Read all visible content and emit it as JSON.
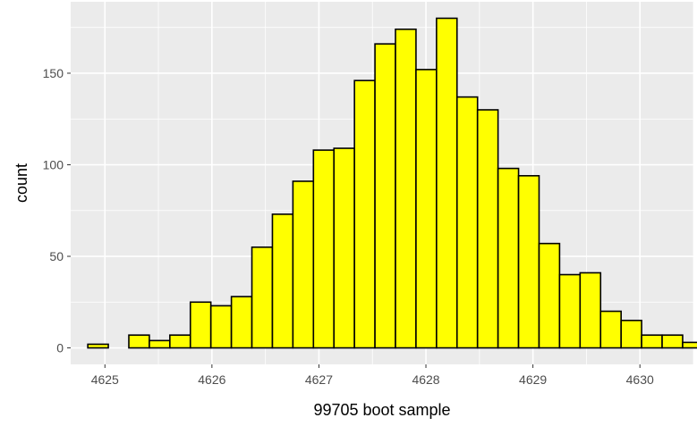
{
  "chart_data": {
    "type": "bar",
    "subtype": "histogram",
    "xlabel": "99705 boot sample",
    "ylabel": "count",
    "xlim": [
      4624.68,
      4630.5
    ],
    "ylim": [
      -9,
      189
    ],
    "x_ticks": [
      4625,
      4626,
      4627,
      4628,
      4629,
      4630
    ],
    "y_ticks": [
      0,
      50,
      100,
      150
    ],
    "bin_start": 4624.84,
    "bin_width": 0.1917,
    "values": [
      2,
      0,
      7,
      4,
      7,
      25,
      23,
      28,
      55,
      73,
      91,
      108,
      109,
      146,
      166,
      174,
      152,
      180,
      137,
      130,
      98,
      94,
      57,
      40,
      41,
      20,
      15,
      7,
      7,
      3
    ],
    "fill_color": "#ffff00",
    "outline_color": "#000000",
    "panel_background": "#ebebeb",
    "grid_color": "#ffffff",
    "grid": true,
    "legend": "none"
  }
}
